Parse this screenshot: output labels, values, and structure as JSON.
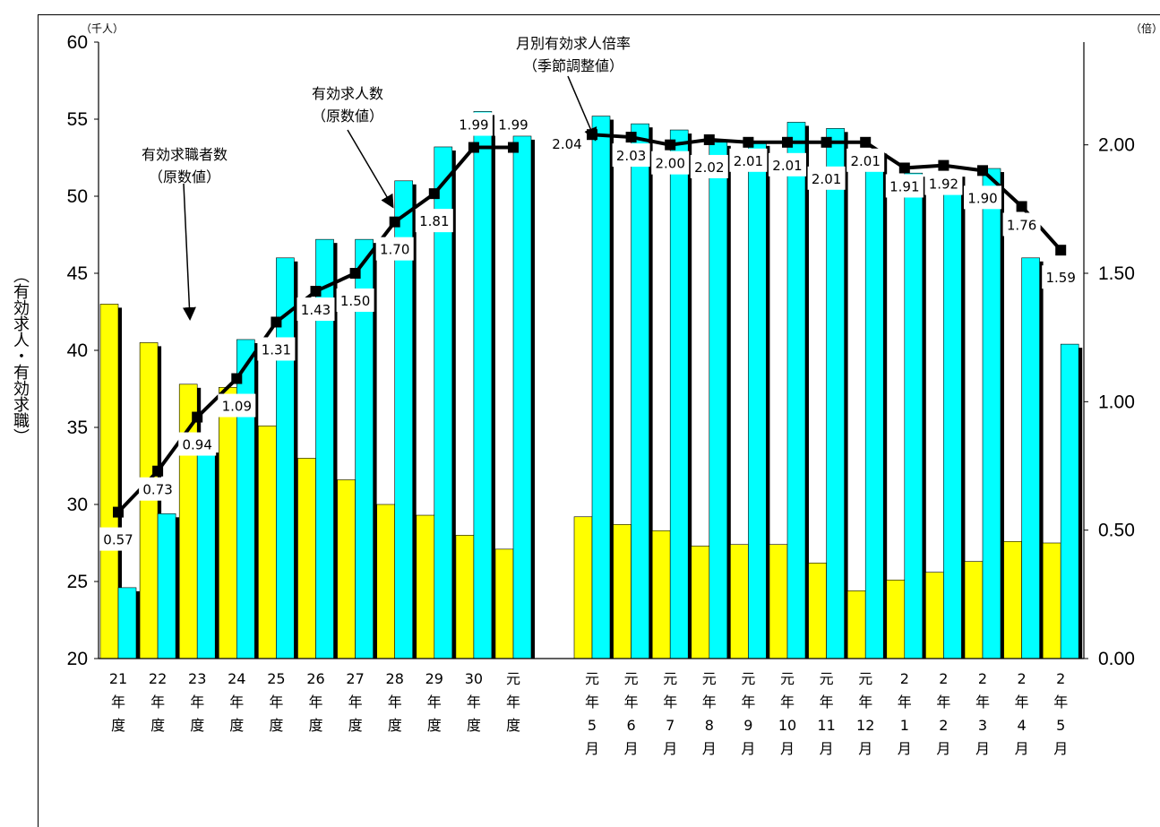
{
  "chart_data": {
    "type": "bar",
    "y_label": "（有効求人・有効求職）",
    "y_unit": "（千人）",
    "y2_unit": "（倍）",
    "ylim": [
      20,
      60
    ],
    "y_ticks": [
      "20",
      "25",
      "30",
      "35",
      "40",
      "45",
      "50",
      "55",
      "60"
    ],
    "y2lim": [
      0,
      2.4
    ],
    "y2_ticks": [
      "0.00",
      "0.50",
      "1.00",
      "1.50",
      "2.00"
    ],
    "categories": [
      [
        "21",
        "年",
        "度"
      ],
      [
        "22",
        "年",
        "度"
      ],
      [
        "23",
        "年",
        "度"
      ],
      [
        "24",
        "年",
        "度"
      ],
      [
        "25",
        "年",
        "度"
      ],
      [
        "26",
        "年",
        "度"
      ],
      [
        "27",
        "年",
        "度"
      ],
      [
        "28",
        "年",
        "度"
      ],
      [
        "29",
        "年",
        "度"
      ],
      [
        "30",
        "年",
        "度"
      ],
      [
        "元",
        "年",
        "度"
      ],
      [
        "元",
        "年",
        "5",
        "月"
      ],
      [
        "元",
        "年",
        "6",
        "月"
      ],
      [
        "元",
        "年",
        "7",
        "月"
      ],
      [
        "元",
        "年",
        "8",
        "月"
      ],
      [
        "元",
        "年",
        "9",
        "月"
      ],
      [
        "元",
        "年",
        "10",
        "月"
      ],
      [
        "元",
        "年",
        "11",
        "月"
      ],
      [
        "元",
        "年",
        "12",
        "月"
      ],
      [
        "2",
        "年",
        "1",
        "月"
      ],
      [
        "2",
        "年",
        "2",
        "月"
      ],
      [
        "2",
        "年",
        "3",
        "月"
      ],
      [
        "2",
        "年",
        "4",
        "月"
      ],
      [
        "2",
        "年",
        "5",
        "月"
      ]
    ],
    "series": [
      {
        "name": "有効求職者数（原数値）",
        "color": "#ffff00",
        "values": [
          43.0,
          40.5,
          37.8,
          37.6,
          35.1,
          33.0,
          31.6,
          30.0,
          29.3,
          28.0,
          27.1,
          29.2,
          28.7,
          28.3,
          27.3,
          27.4,
          27.4,
          26.2,
          24.4,
          25.1,
          25.6,
          26.3,
          27.6,
          27.5
        ]
      },
      {
        "name": "有効求人数（原数値）",
        "color": "#00ffff",
        "values": [
          24.6,
          29.4,
          33.6,
          40.7,
          46.0,
          47.2,
          47.2,
          51.0,
          53.2,
          55.5,
          53.9,
          55.2,
          54.7,
          54.3,
          53.5,
          53.5,
          54.8,
          54.4,
          53.0,
          51.5,
          51.5,
          51.8,
          46.0,
          40.4
        ]
      },
      {
        "name": "月別有効求人倍率（季節調整値）",
        "type": "line",
        "axis": "right",
        "values": [
          0.57,
          0.73,
          0.94,
          1.09,
          1.31,
          1.43,
          1.5,
          1.7,
          1.81,
          1.99,
          1.99,
          2.04,
          2.03,
          2.0,
          2.02,
          2.01,
          2.01,
          2.01,
          2.01,
          1.91,
          1.92,
          1.9,
          1.76,
          1.59
        ],
        "labels": [
          "0.57",
          "0.73",
          "0.94",
          "1.09",
          "1.31",
          "1.43",
          "1.50",
          "1.70",
          "1.81",
          "1.99",
          "1.99",
          "2.04",
          "2.03",
          "2.00",
          "2.02",
          "2.01",
          "2.01",
          "2.01",
          "2.01",
          "1.91",
          "1.92",
          "1.90",
          "1.76",
          "1.59"
        ]
      }
    ],
    "annotations": [
      {
        "lines": [
          "有効求職者数",
          "（原数値）"
        ]
      },
      {
        "lines": [
          "有効求人数",
          "（原数値）"
        ]
      },
      {
        "lines": [
          "月別有効求人倍率",
          "（季節調整値）"
        ]
      }
    ],
    "colors": {
      "seeker": "#ffff00",
      "offer": "#00ffff",
      "shadow": "#000000",
      "line": "#000000"
    }
  }
}
